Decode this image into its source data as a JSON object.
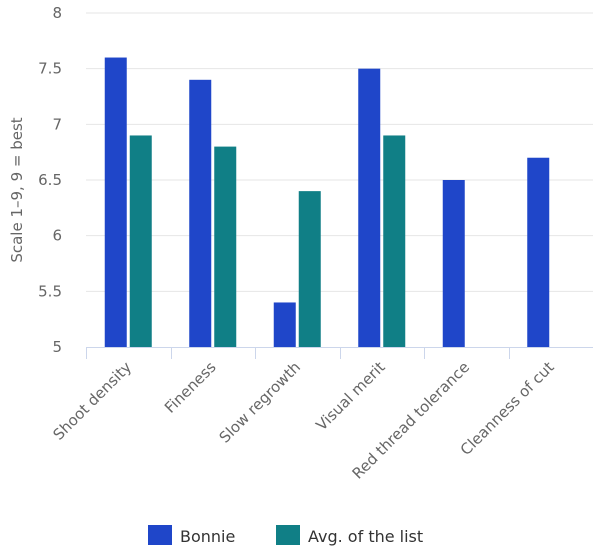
{
  "chart_data": {
    "type": "bar",
    "title": "",
    "xlabel": "",
    "ylabel": "Scale 1–9, 9 = best",
    "ylim": [
      5,
      8
    ],
    "yticks": [
      "5",
      "5.5",
      "6",
      "6.5",
      "7",
      "7.5",
      "8"
    ],
    "categories": [
      "Shoot density",
      "Fineness",
      "Slow regrowth",
      "Visual merit",
      "Red thread tolerance",
      "Cleanness of cut"
    ],
    "series": [
      {
        "name": "Bonnie",
        "color": "#1f46c9",
        "values": [
          7.6,
          7.4,
          5.4,
          7.5,
          6.5,
          6.7
        ]
      },
      {
        "name": "Avg. of the list",
        "color": "#107f86",
        "values": [
          6.9,
          6.8,
          6.4,
          6.9,
          null,
          null
        ]
      }
    ],
    "grid": true,
    "legend": "bottom"
  }
}
